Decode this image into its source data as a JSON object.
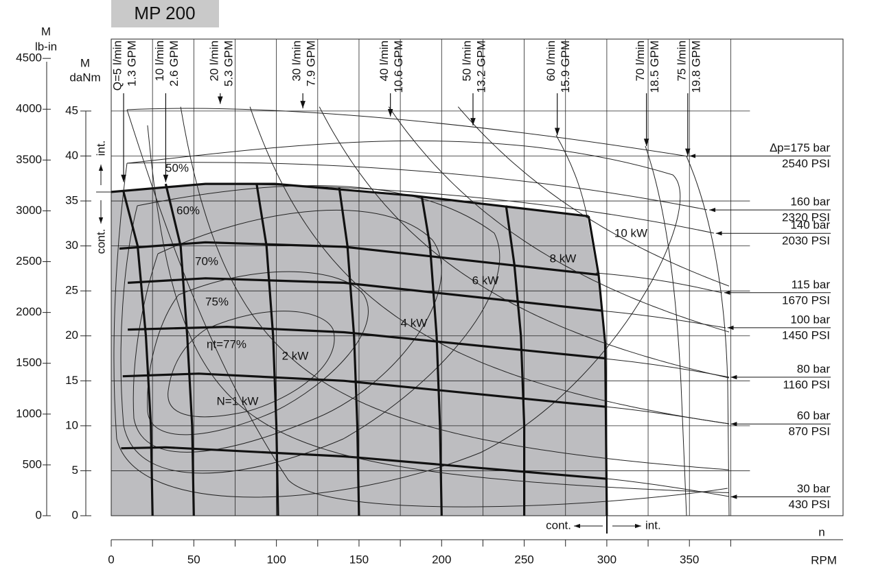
{
  "chart_data": {
    "type": "line",
    "title": "MP 200",
    "y2_label": [
      "M",
      "lb-in"
    ],
    "y_label": [
      "M",
      "daNm"
    ],
    "x_label": "n",
    "x_unit": "RPM",
    "xlim": [
      0,
      443
    ],
    "xticks": [
      0,
      50,
      100,
      150,
      200,
      250,
      300,
      350
    ],
    "xminor": [
      25,
      75,
      125,
      175,
      225,
      275,
      325,
      375
    ],
    "ylim": [
      0,
      53
    ],
    "yticks": [
      0,
      5,
      10,
      15,
      20,
      25,
      30,
      35,
      40,
      45
    ],
    "y2lim": [
      0,
      4690
    ],
    "y2ticks": [
      0,
      500,
      1000,
      1500,
      2000,
      2500,
      3000,
      3500,
      4000,
      4500
    ],
    "flows": [
      {
        "name": "Q=5 l/min",
        "gpm": "1.3 GPM",
        "rpm": 7.5,
        "torque": 37.1
      },
      {
        "name": "10 l/min",
        "gpm": "2.6 GPM",
        "rpm": 33,
        "torque": 37.1
      },
      {
        "name": "20 l/min",
        "gpm": "5.3 GPM",
        "rpm": 66,
        "torque": 45.8
      },
      {
        "name": "30 l/min",
        "gpm": "7.9 GPM",
        "rpm": 116,
        "torque": 45.3
      },
      {
        "name": "40 l/min",
        "gpm": "10.6 GPM",
        "rpm": 169,
        "torque": 44.4
      },
      {
        "name": "50 l/min",
        "gpm": "13.2 GPM",
        "rpm": 219,
        "torque": 43.4
      },
      {
        "name": "60 l/min",
        "gpm": "15.9 GPM",
        "rpm": 270,
        "torque": 42.3
      },
      {
        "name": "70 l/min",
        "gpm": "18.5 GPM",
        "rpm": 324,
        "torque": 41.1
      },
      {
        "name": "75 l/min",
        "gpm": "19.8 GPM",
        "rpm": 349,
        "torque": 40.0
      }
    ],
    "pressures": [
      {
        "name": "∆p=175 bar",
        "psi": "2540 PSI",
        "rpm": 350,
        "torque": 40.0
      },
      {
        "name": "160 bar",
        "psi": "2320 PSI",
        "rpm": 362,
        "torque": 34.0
      },
      {
        "name": "140 bar",
        "psi": "2030 PSI",
        "rpm": 366,
        "torque": 31.4
      },
      {
        "name": "115 bar",
        "psi": "1670 PSI",
        "rpm": 371,
        "torque": 24.8
      },
      {
        "name": "100 bar",
        "psi": "1450 PSI",
        "rpm": 373,
        "torque": 20.9
      },
      {
        "name": "80 bar",
        "psi": "1160 PSI",
        "rpm": 375,
        "torque": 15.4
      },
      {
        "name": "60 bar",
        "psi": "870 PSI",
        "rpm": 375,
        "torque": 10.2
      },
      {
        "name": "30 bar",
        "psi": "430 PSI",
        "rpm": 375,
        "torque": 2.1
      }
    ],
    "flow_lines": [
      {
        "x": [
          7.5,
          16,
          21,
          24,
          25
        ],
        "y": [
          36.0,
          30,
          20,
          10,
          0
        ]
      },
      {
        "x": [
          33,
          42,
          46,
          49,
          50
        ],
        "y": [
          36.9,
          30,
          20,
          10,
          0
        ]
      },
      {
        "x": [
          88,
          94,
          98,
          100,
          101
        ],
        "y": [
          36.9,
          30,
          20,
          10,
          0
        ]
      },
      {
        "x": [
          138,
          143,
          147,
          149,
          150
        ],
        "y": [
          36.5,
          30,
          20,
          10,
          0
        ]
      },
      {
        "x": [
          188,
          193,
          197,
          199,
          200
        ],
        "y": [
          35.5,
          30,
          20,
          10,
          0
        ]
      },
      {
        "x": [
          239,
          244,
          248,
          250,
          250
        ],
        "y": [
          34.5,
          28,
          20,
          10,
          0
        ]
      },
      {
        "x": [
          289,
          295,
          299,
          300
        ],
        "y": [
          33.3,
          26.8,
          19.2,
          0
        ]
      }
    ],
    "pressure_lines": [
      {
        "x": [
          0,
          57,
          99,
          182,
          289
        ],
        "y": [
          36.0,
          36.9,
          36.9,
          35.6,
          33.3
        ]
      },
      {
        "x": [
          5,
          57,
          141,
          295
        ],
        "y": [
          29.7,
          30.4,
          29.9,
          26.8
        ]
      },
      {
        "x": [
          10,
          57,
          141,
          297
        ],
        "y": [
          25.9,
          26.4,
          25.9,
          22.8
        ]
      },
      {
        "x": [
          10,
          70,
          141,
          299
        ],
        "y": [
          20.7,
          21.0,
          20.4,
          17.5
        ]
      },
      {
        "x": [
          7,
          53,
          141,
          300
        ],
        "y": [
          15.5,
          15.8,
          15.0,
          12.1
        ]
      },
      {
        "x": [
          6,
          33,
          141,
          300
        ],
        "y": [
          7.5,
          7.6,
          6.6,
          4.1
        ]
      }
    ],
    "efficiency": [
      "50%",
      "60%",
      "70%",
      "75%",
      "ηt=77%"
    ],
    "power": [
      {
        "label": "N=1 kW",
        "value": 1
      },
      {
        "label": "2 kW",
        "value": 2
      },
      {
        "label": "4 kW",
        "value": 4
      },
      {
        "label": "6 kW",
        "value": 6
      },
      {
        "label": "8 kW",
        "value": 8
      },
      {
        "label": "10 kW",
        "value": 10
      }
    ],
    "continuous": "cont.",
    "intermittent": "int."
  }
}
